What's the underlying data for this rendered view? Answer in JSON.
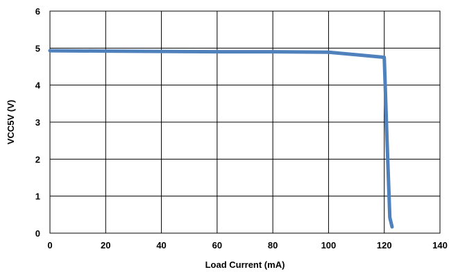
{
  "chart_data": {
    "type": "line",
    "title": "",
    "xlabel": "Load Current (mA)",
    "ylabel": "VCC5V (V)",
    "xlim": [
      0,
      140
    ],
    "ylim": [
      0,
      6
    ],
    "xticks": [
      "0",
      "20",
      "40",
      "60",
      "80",
      "100",
      "120",
      "140"
    ],
    "yticks": [
      "0",
      "1",
      "2",
      "3",
      "4",
      "5",
      "6"
    ],
    "grid": true,
    "legend": "none",
    "series": [
      {
        "color": "#4F81BD",
        "points": [
          [
            0,
            4.93
          ],
          [
            20,
            4.92
          ],
          [
            40,
            4.91
          ],
          [
            60,
            4.9
          ],
          [
            80,
            4.9
          ],
          [
            100,
            4.89
          ],
          [
            120,
            4.75
          ],
          [
            121,
            2.5
          ],
          [
            122,
            0.42
          ],
          [
            122.8,
            0.17
          ]
        ]
      }
    ]
  }
}
